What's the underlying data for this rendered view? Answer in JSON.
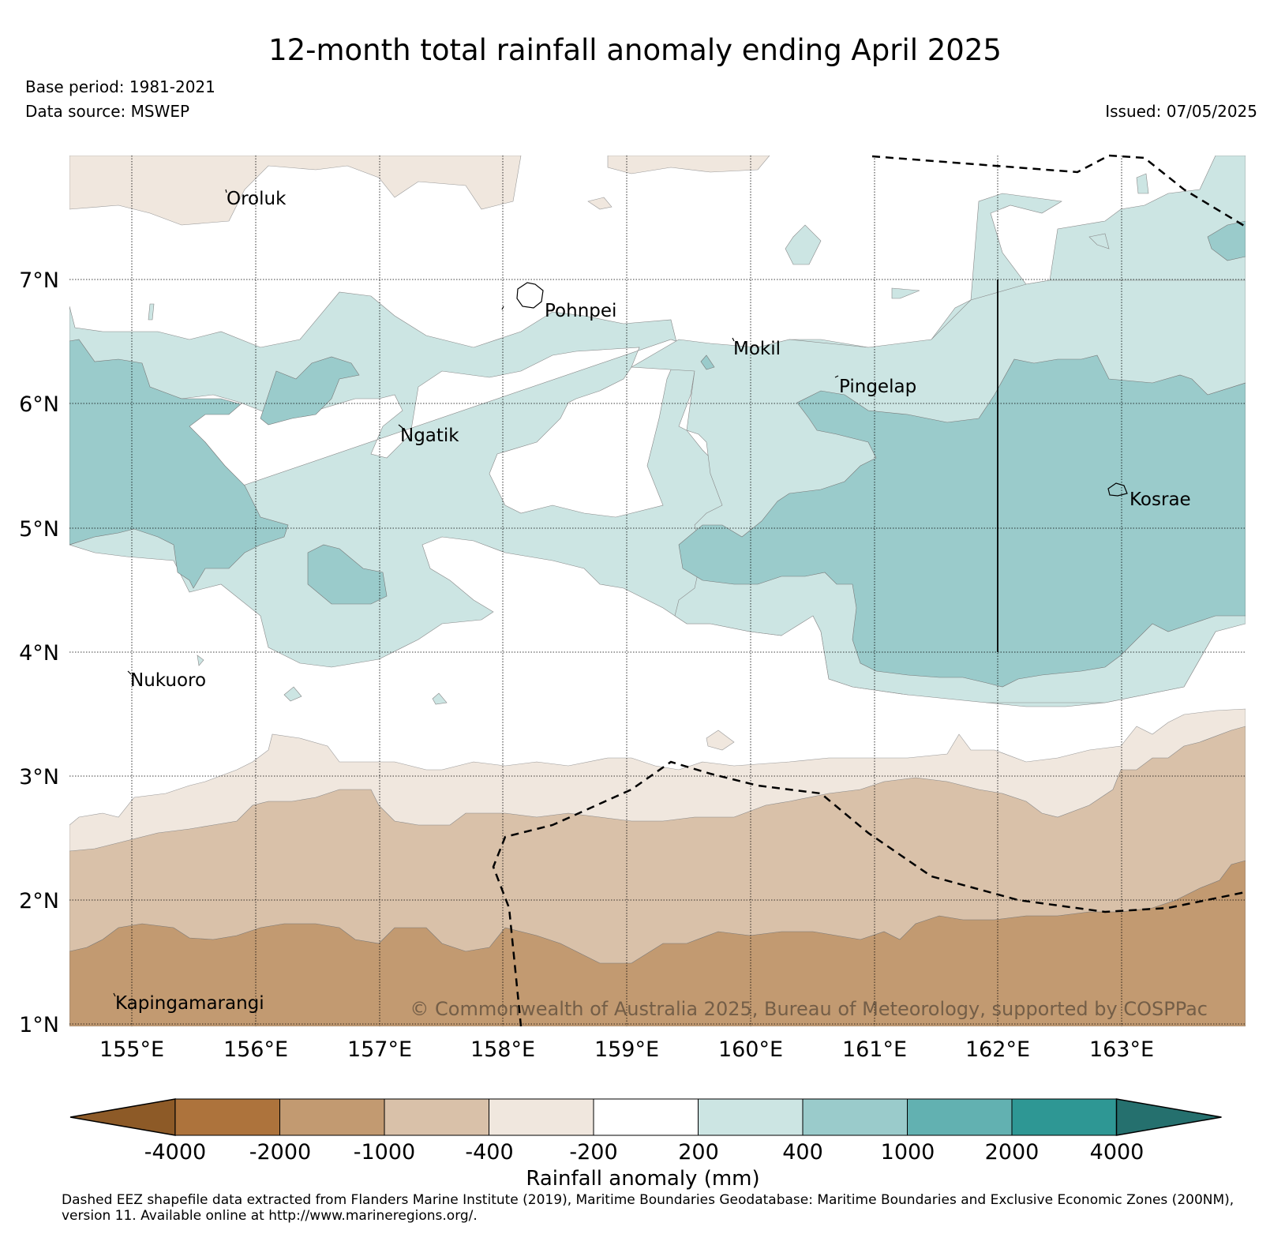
{
  "title": "12-month total rainfall anomaly ending April 2025",
  "base_period": "Base period: 1981-2021",
  "data_source": "Data source: MSWEP",
  "issued": "Issued: 07/05/2025",
  "copyright": "© Commonwealth of Australia 2025, Bureau of Meteorology, supported by COSPPac",
  "map": {
    "lon_range": [
      154.5,
      164.0
    ],
    "lat_range": [
      1.0,
      8.0
    ],
    "lon_ticks": [
      "155°E",
      "156°E",
      "157°E",
      "158°E",
      "159°E",
      "160°E",
      "161°E",
      "162°E",
      "163°E"
    ],
    "lat_ticks": [
      "1°N",
      "2°N",
      "3°N",
      "4°N",
      "5°N",
      "6°N",
      "7°N"
    ],
    "islands": [
      {
        "name": "Oroluk",
        "lon": 155.75,
        "lat": 7.7
      },
      {
        "name": "Pohnpei",
        "lon": 158.3,
        "lat": 6.85
      },
      {
        "name": "Mokil",
        "lon": 159.85,
        "lat": 6.55
      },
      {
        "name": "Pingelap",
        "lon": 160.7,
        "lat": 6.2
      },
      {
        "name": "Ngatik",
        "lon": 157.1,
        "lat": 5.8
      },
      {
        "name": "Kosrae",
        "lon": 163.0,
        "lat": 5.3
      },
      {
        "name": "Nukuoro",
        "lon": 154.95,
        "lat": 3.85
      },
      {
        "name": "Kapingamarangi",
        "lon": 154.85,
        "lat": 1.2
      }
    ]
  },
  "legend": {
    "title": "Rainfall anomaly (mm)",
    "tick_labels": [
      "-4000",
      "-2000",
      "-1000",
      "-400",
      "-200",
      "200",
      "400",
      "1000",
      "2000",
      "4000"
    ],
    "colors": [
      "#8d5a27",
      "#ad733c",
      "#c29a71",
      "#d9c1a9",
      "#f0e7de",
      "#ffffff",
      "#cce5e3",
      "#9acbcb",
      "#62b1b1",
      "#2e9794",
      "#25706e"
    ]
  },
  "footnote": "Dashed EEZ shapefile data extracted from Flanders Marine Institute (2019), Maritime Boundaries Geodatabase: Maritime Boundaries and Exclusive Economic Zones (200NM), version 11. Available online at http://www.marineregions.org/."
}
